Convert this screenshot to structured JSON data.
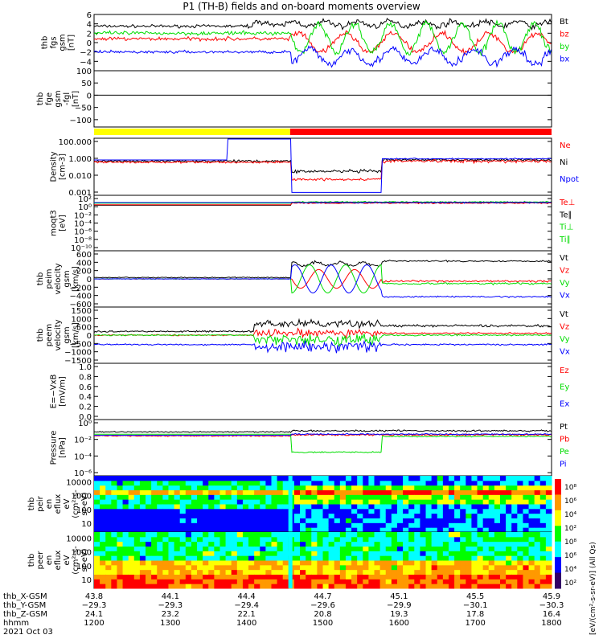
{
  "title": "P1 (TH-B) fields and on-board moments overview",
  "colors": {
    "black": "#000000",
    "red": "#ff0000",
    "green": "#00dd00",
    "blue": "#0000ff",
    "yellow": "#ffff00"
  },
  "chart_data": [
    {
      "id": "fgs",
      "type": "line",
      "ylabel": [
        "thb",
        "fgs",
        "gsm",
        "[nT]"
      ],
      "ylim": [
        -6,
        6
      ],
      "yticks": [
        -4,
        -2,
        0,
        2,
        4,
        6
      ],
      "ytick_labels": [
        "−4",
        "−2",
        "0",
        "2",
        "4",
        "6"
      ],
      "legend": [
        {
          "name": "Bt",
          "color": "black"
        },
        {
          "name": "bz",
          "color": "red"
        },
        {
          "name": "by",
          "color": "green"
        },
        {
          "name": "bx",
          "color": "blue"
        }
      ]
    },
    {
      "id": "fge",
      "type": "line",
      "ylabel": [
        "thb",
        "fge",
        "gsm",
        "-fgl",
        "[nT]"
      ],
      "ylim": [
        -130,
        100
      ],
      "yticks": [
        -100,
        -50,
        0,
        50,
        100
      ],
      "ytick_labels": [
        "−100",
        "−50",
        "0",
        "50",
        "100"
      ],
      "legend": []
    },
    {
      "id": "mode_bar",
      "type": "bar",
      "segments": [
        {
          "from": 43.8,
          "to": 44.7,
          "color": "yellow"
        },
        {
          "from": 44.7,
          "to": 45.9,
          "color": "red"
        }
      ]
    },
    {
      "id": "density",
      "type": "line",
      "ylabel": [
        "Density",
        "[cm-3]"
      ],
      "ylim": [
        "0.0001",
        "1000"
      ],
      "log": true,
      "ytick_labels": [
        "0.001",
        "0.010",
        "1.000",
        "100.000"
      ],
      "legend": [
        {
          "name": "Ne",
          "color": "red"
        },
        {
          "name": "Ni",
          "color": "black"
        },
        {
          "name": "Npot",
          "color": "blue"
        }
      ]
    },
    {
      "id": "temp",
      "type": "line",
      "ylabel": [
        "moqt3",
        "[eV]"
      ],
      "log": true,
      "ytick_labels": [
        "10⁻¹⁰",
        "10⁻⁸",
        "10⁻⁶",
        "10⁻⁴",
        "10⁻²",
        "10⁰",
        "10²"
      ],
      "legend": [
        {
          "name": "Te⊥",
          "color": "red"
        },
        {
          "name": "Te∥",
          "color": "black"
        },
        {
          "name": "Ti⊥",
          "color": "green"
        },
        {
          "name": "Ti∥",
          "color": "green"
        }
      ]
    },
    {
      "id": "peim",
      "type": "line",
      "ylabel": [
        "thb",
        "peim",
        "velocity",
        "gsm",
        "[km/s]"
      ],
      "ylim": [
        -600,
        600
      ],
      "ytick_labels": [
        "−600",
        "−400",
        "−200",
        "0",
        "200",
        "400",
        "600"
      ],
      "legend": [
        {
          "name": "Vt",
          "color": "black"
        },
        {
          "name": "Vz",
          "color": "red"
        },
        {
          "name": "Vy",
          "color": "green"
        },
        {
          "name": "Vx",
          "color": "blue"
        }
      ]
    },
    {
      "id": "peem",
      "type": "line",
      "ylabel": [
        "thb",
        "peem",
        "velocity",
        "gsm",
        "[km/s]"
      ],
      "ylim": [
        -1500,
        1500
      ],
      "ytick_labels": [
        "−1500",
        "−1000",
        "−500",
        "0",
        "500",
        "1000",
        "1500"
      ],
      "legend": [
        {
          "name": "Vt",
          "color": "black"
        },
        {
          "name": "Vz",
          "color": "red"
        },
        {
          "name": "Vy",
          "color": "green"
        },
        {
          "name": "Vx",
          "color": "blue"
        }
      ]
    },
    {
      "id": "efield",
      "type": "line",
      "ylabel": [
        "E=−VxB",
        "[mV/m]"
      ],
      "ylim": [
        0,
        1
      ],
      "ytick_labels": [
        "0.0",
        "0.2",
        "0.4",
        "0.6",
        "0.8",
        "1.0"
      ],
      "legend": [
        {
          "name": "Ez",
          "color": "red"
        },
        {
          "name": "Ey",
          "color": "green"
        },
        {
          "name": "Ex",
          "color": "blue"
        }
      ]
    },
    {
      "id": "pressure",
      "type": "line",
      "ylabel": [
        "Pressure",
        "[nPa]"
      ],
      "log": true,
      "ytick_labels": [
        "10⁻⁶",
        "10⁻⁴",
        "10⁻²",
        "10⁰"
      ],
      "legend": [
        {
          "name": "Pt",
          "color": "black"
        },
        {
          "name": "Pb",
          "color": "red"
        },
        {
          "name": "Pe",
          "color": "green"
        },
        {
          "name": "Pi",
          "color": "blue"
        }
      ]
    },
    {
      "id": "peir",
      "type": "heatmap",
      "ylabel": [
        "thb",
        "peir",
        "en",
        "eflux",
        "eV",
        "(cm²-s-",
        "sr-eV)"
      ],
      "log": true,
      "ytick_labels": [
        "10",
        "100",
        "1000",
        "10000"
      ]
    },
    {
      "id": "peer",
      "type": "heatmap",
      "ylabel": [
        "thb",
        "peer",
        "en",
        "eflux",
        "eV",
        "(cm²-s-",
        "sr-eV)"
      ],
      "log": true,
      "ytick_labels": [
        "10",
        "100",
        "1000",
        "10000"
      ]
    }
  ],
  "colorbar": {
    "tick_labels": [
      "10²",
      "10⁴",
      "10⁶",
      "10⁸",
      "10²",
      "10⁴",
      "10⁶",
      "10⁸"
    ],
    "label": "[eV/(cm²-s-sr-eV)] (All Qs)"
  },
  "xaxis": {
    "rows": [
      {
        "label": "thb_X-GSM",
        "values": [
          "43.8",
          "44.1",
          "44.4",
          "44.7",
          "45.1",
          "45.5",
          "45.9"
        ]
      },
      {
        "label": "thb_Y-GSM",
        "values": [
          "−29.3",
          "−29.3",
          "−29.4",
          "−29.6",
          "−29.9",
          "−30.1",
          "−30.3"
        ]
      },
      {
        "label": "thb_Z-GSM",
        "values": [
          "24.1",
          "23.2",
          "22.1",
          "20.8",
          "19.3",
          "17.8",
          "16.4"
        ]
      },
      {
        "label": "hhmm",
        "values": [
          "1200",
          "1300",
          "1400",
          "1500",
          "1600",
          "1700",
          "1800"
        ]
      }
    ],
    "date": "2021 Oct 03"
  }
}
